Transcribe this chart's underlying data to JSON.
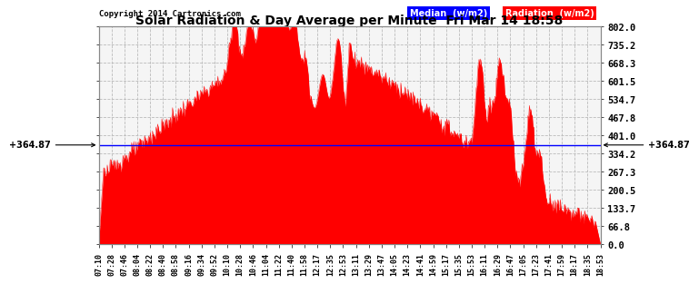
{
  "title": "Solar Radiation & Day Average per Minute  Fri Mar 14 18:58",
  "copyright": "Copyright 2014 Cartronics.com",
  "median_value": 364.87,
  "ymax": 802.0,
  "yticks": [
    0.0,
    66.8,
    133.7,
    200.5,
    267.3,
    334.2,
    401.0,
    467.8,
    534.7,
    601.5,
    668.3,
    735.2,
    802.0
  ],
  "ytick_labels": [
    "0.0",
    "66.8",
    "133.7",
    "200.5",
    "267.3",
    "334.2",
    "401.0",
    "467.8",
    "534.7",
    "601.5",
    "668.3",
    "735.2",
    "802.0"
  ],
  "bg_color": "#ffffff",
  "plot_bg_color": "#f0f0f0",
  "area_color": "#ff0000",
  "line_color": "#0000ff",
  "grid_color": "#bbbbbb",
  "title_color": "#000000",
  "legend_median_bg": "#0000ff",
  "legend_radiation_bg": "#ff0000",
  "xtick_labels": [
    "07:10",
    "07:28",
    "07:46",
    "08:04",
    "08:22",
    "08:40",
    "08:58",
    "09:16",
    "09:34",
    "09:52",
    "10:10",
    "10:28",
    "10:46",
    "11:04",
    "11:22",
    "11:40",
    "11:58",
    "12:17",
    "12:35",
    "12:53",
    "13:11",
    "13:29",
    "13:47",
    "14:05",
    "14:23",
    "14:41",
    "14:59",
    "15:17",
    "15:35",
    "15:53",
    "16:11",
    "16:29",
    "16:47",
    "17:05",
    "17:23",
    "17:41",
    "17:59",
    "18:17",
    "18:35",
    "18:53"
  ]
}
